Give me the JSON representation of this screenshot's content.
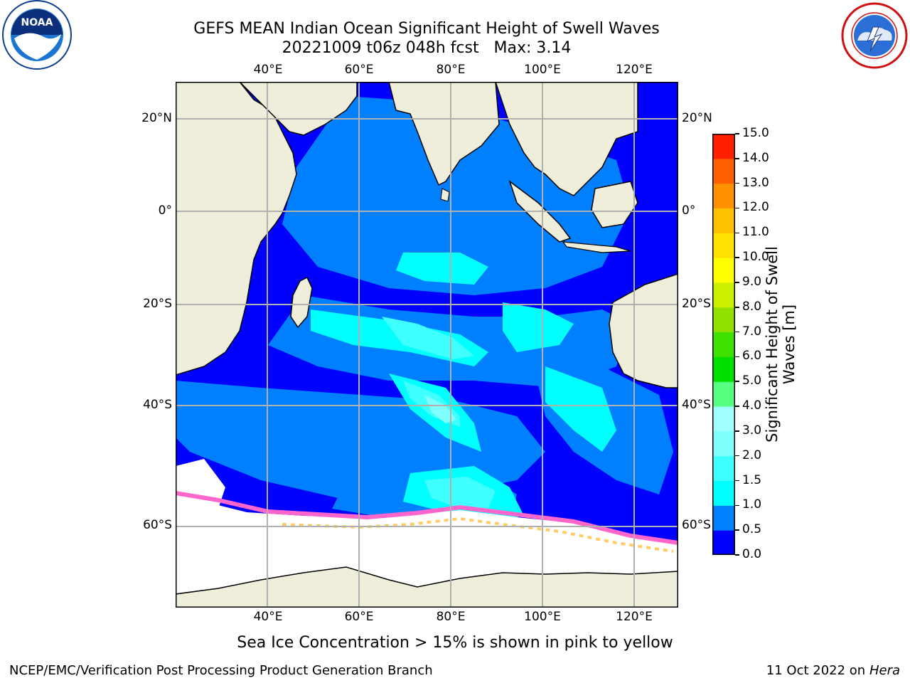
{
  "header": {
    "title_line1": "GEFS MEAN Indian Ocean Significant Height of Swell Waves",
    "title_line2": "20221009 t06z 048h fcst   Max: 3.14"
  },
  "logos": {
    "left": {
      "name": "NOAA",
      "ring_text": "NATIONAL OCEANIC AND ATMOSPHERIC ADMINISTRATION · U.S. DEPARTMENT OF COMMERCE"
    },
    "right": {
      "name": "NATIONAL WEATHER SERVICE"
    }
  },
  "map": {
    "lon_ticks_top": [
      "40°E",
      "60°E",
      "80°E",
      "100°E",
      "120°E"
    ],
    "lon_ticks_bottom": [
      "40°E",
      "60°E",
      "80°E",
      "100°E",
      "120°E"
    ],
    "lat_ticks_left": [
      "20°N",
      "0°",
      "20°S",
      "40°S",
      "60°S"
    ],
    "lat_ticks_right": [
      "20°N",
      "0°",
      "20°S",
      "40°S",
      "60°S"
    ],
    "colors": {
      "land": "#efeedb",
      "ocean_low": "#0000ff",
      "ocean_mid": "#0080ff",
      "ice": "#ffffff",
      "grid": "#b0b0b0"
    }
  },
  "colorbar": {
    "label_line1": "Significant Height of Swell",
    "label_line2": "Waves [m]",
    "tick_labels": [
      "0.0",
      "0.5",
      "1.0",
      "1.5",
      "2.0",
      "3.0",
      "4.0",
      "5.0",
      "6.0",
      "7.0",
      "8.0",
      "9.0",
      "10.0",
      "11.0",
      "12.0",
      "13.0",
      "14.0",
      "15.0"
    ],
    "colors": [
      "#0000ff",
      "#0080ff",
      "#00ffff",
      "#40ffff",
      "#80ffff",
      "#a0ffff",
      "#55ff80",
      "#00e000",
      "#40e000",
      "#90e000",
      "#ccf000",
      "#ffff00",
      "#ffe000",
      "#ffc000",
      "#ff9000",
      "#ff6000",
      "#ff2000"
    ]
  },
  "caption": "Sea Ice Concentration > 15% is shown in pink to yellow",
  "footer": {
    "left": "NCEP/EMC/Verification Post Processing Product Generation Branch",
    "right_prefix": "11 Oct 2022 on ",
    "right_host": "Hera"
  }
}
